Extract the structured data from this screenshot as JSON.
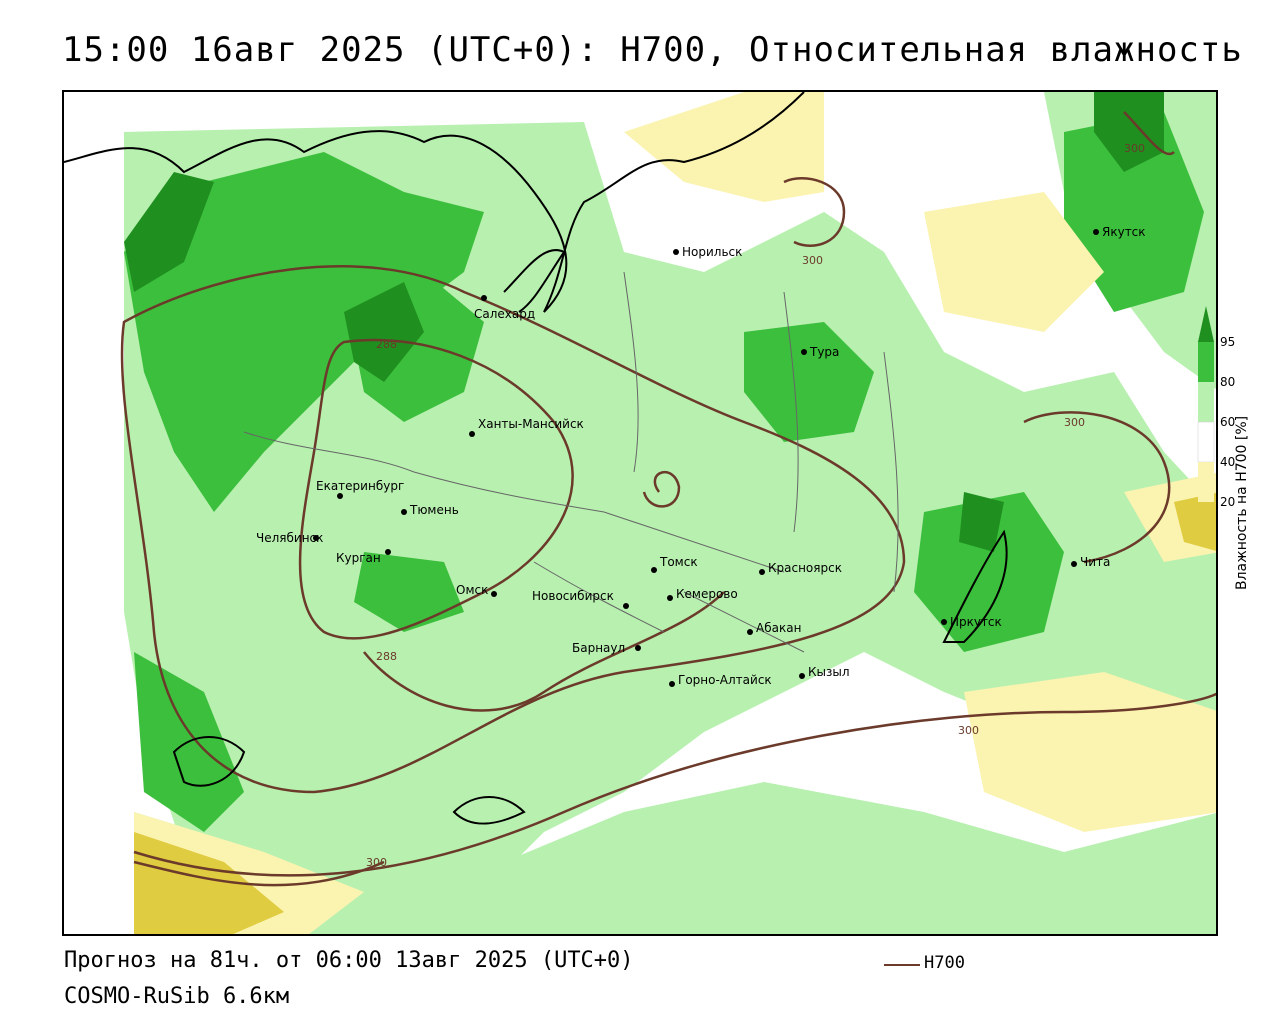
{
  "title": "15:00 16авг 2025 (UTC+0): H700, Относительная влажность",
  "forecast_line": "Прогноз на 81ч. от 06:00 13авг 2025 (UTC+0)",
  "model_line": "COSMO-RuSib 6.6км",
  "legend": {
    "label": "H700",
    "color": "#6b3a2a"
  },
  "colorbar": {
    "title": "Влажность на Н700 [%]",
    "ticks": [
      "95",
      "80",
      "60",
      "40",
      "20"
    ],
    "colors": {
      "very_wet": "#1f8f1f",
      "wet": "#3cbf3c",
      "moist": "#b8f0b0",
      "neutral": "#ffffff",
      "dry": "#fbf3b0",
      "very_dry": "#e0cc40"
    }
  },
  "contour_labels": [
    "288",
    "300",
    "300",
    "288",
    "300",
    "300",
    "300"
  ],
  "cities": [
    {
      "name": "Норильск"
    },
    {
      "name": "Якутск"
    },
    {
      "name": "Салехард"
    },
    {
      "name": "Тура"
    },
    {
      "name": "Ханты-Мансийск"
    },
    {
      "name": "Екатеринбург"
    },
    {
      "name": "Тюмень"
    },
    {
      "name": "Челябинск"
    },
    {
      "name": "Курган"
    },
    {
      "name": "Омск"
    },
    {
      "name": "Новосибирск"
    },
    {
      "name": "Томск"
    },
    {
      "name": "Кемерово"
    },
    {
      "name": "Красноярск"
    },
    {
      "name": "Абакан"
    },
    {
      "name": "Барнаул"
    },
    {
      "name": "Горно-Алтайск"
    },
    {
      "name": "Кызыл"
    },
    {
      "name": "Иркутск"
    },
    {
      "name": "Чита"
    }
  ]
}
